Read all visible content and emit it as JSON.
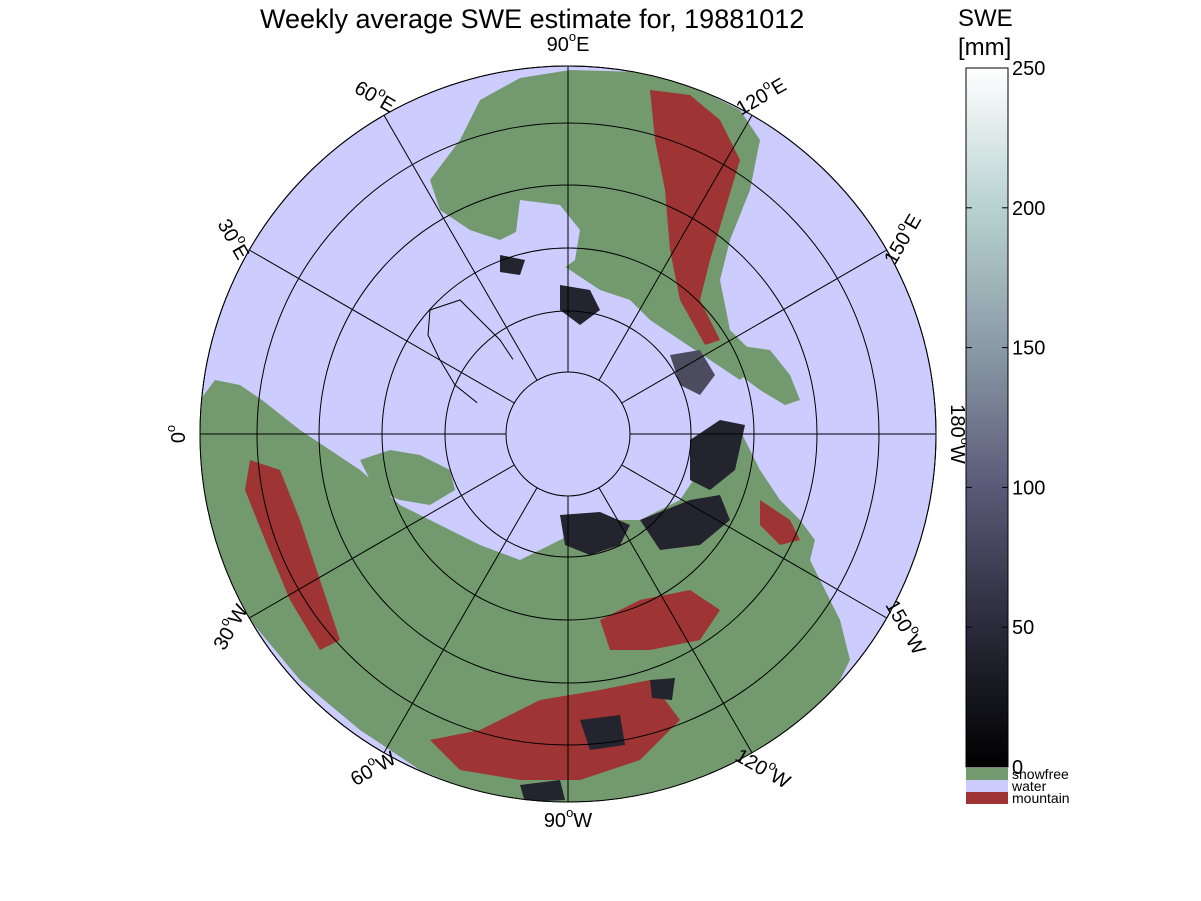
{
  "title": "Weekly average SWE estimate for, 19881012",
  "colorbar": {
    "title_line1": "SWE",
    "title_line2": "[mm]",
    "min": 0,
    "max": 250,
    "ticks": [
      0,
      50,
      100,
      150,
      200,
      250
    ],
    "gradient_colors": [
      "#000000",
      "#2a2a3a",
      "#5a5a78",
      "#8a9aa6",
      "#b8d2d0",
      "#ffffff"
    ]
  },
  "legend": [
    {
      "label": "snowfree",
      "color": "#739a6f"
    },
    {
      "label": "water",
      "color": "#ccccff"
    },
    {
      "label": "mountain",
      "color": "#9e3433"
    }
  ],
  "meridian_labels": [
    {
      "lon_deg": 90,
      "dir": "W",
      "text_deg": "90",
      "rot": 0
    },
    {
      "lon_deg": 120,
      "dir": "W",
      "text_deg": "120",
      "rot": 30
    },
    {
      "lon_deg": 150,
      "dir": "W",
      "text_deg": "150",
      "rot": 60
    },
    {
      "lon_deg": 180,
      "dir": "W",
      "text_deg": "180",
      "rot": 90
    },
    {
      "lon_deg": 150,
      "dir": "E",
      "text_deg": "150",
      "rot": -60
    },
    {
      "lon_deg": 120,
      "dir": "E",
      "text_deg": "120",
      "rot": -30
    },
    {
      "lon_deg": 90,
      "dir": "E",
      "text_deg": "90",
      "rot": 0
    },
    {
      "lon_deg": 60,
      "dir": "E",
      "text_deg": "60",
      "rot": 30
    },
    {
      "lon_deg": 30,
      "dir": "E",
      "text_deg": "30",
      "rot": 60
    },
    {
      "lon_deg": 0,
      "dir": "",
      "text_deg": "0",
      "rot": -90
    },
    {
      "lon_deg": 30,
      "dir": "W",
      "text_deg": "30",
      "rot": -60
    },
    {
      "lon_deg": 60,
      "dir": "W",
      "text_deg": "60",
      "rot": -30
    }
  ],
  "colors": {
    "water": "#ccccff",
    "land": "#739a6f",
    "mountain": "#9e3433",
    "snow": "#2a2a36",
    "grid": "#000000"
  }
}
